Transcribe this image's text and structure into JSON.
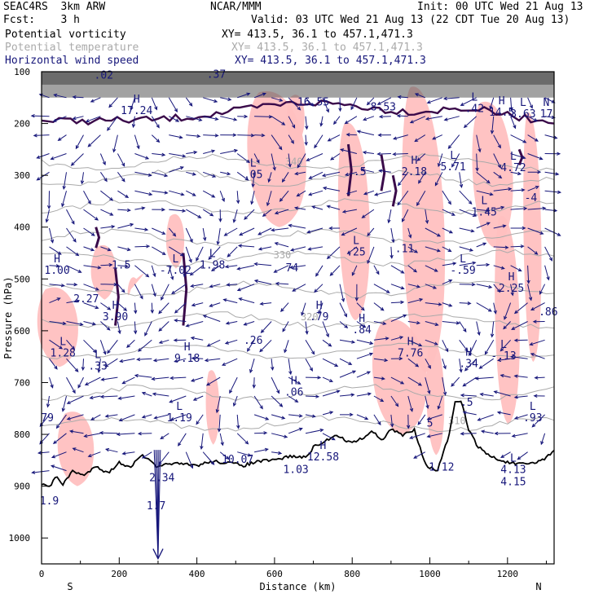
{
  "header": {
    "project": "SEAC4RS",
    "model": "3km ARW",
    "center": "NCAR/MMM",
    "init": "Init: 00 UTC Wed 21 Aug 13",
    "fcst_label": "Fcst:",
    "fcst_value": "3 h",
    "valid": "Valid: 03 UTC Wed 21 Aug 13 (22 CDT Tue 20 Aug 13)",
    "fields": [
      {
        "name": "Potential vorticity",
        "xy": "XY= 413.5, 36.1 to 457.1,471.3",
        "color": "#000000"
      },
      {
        "name": "Potential temperature",
        "xy": "XY= 413.5, 36.1 to 457.1,471.3",
        "color": "#aaaaaa"
      },
      {
        "name": "Horizontal wind speed",
        "xy": "XY= 413.5, 36.1 to 457.1,471.3",
        "color": "#16167a"
      }
    ]
  },
  "colors": {
    "pv_fill": "#ffc0c0",
    "wind_vectors": "#16167a",
    "theta_contours": "#aaaaaa",
    "pv_contour": "#3a0a4a",
    "terrain": "#000000"
  },
  "chart_data": {
    "type": "cross-section",
    "xlabel": "Distance (km)",
    "ylabel": "Pressure (hPa)",
    "xlim": [
      0,
      1320
    ],
    "ylim": [
      1050,
      100
    ],
    "x_ticks": [
      0,
      200,
      400,
      600,
      800,
      1000,
      1200
    ],
    "y_ticks": [
      100,
      200,
      300,
      400,
      500,
      600,
      700,
      800,
      900,
      1000
    ],
    "x_end_labels": {
      "left": "S",
      "right": "N"
    },
    "theta_contour_labels": [
      {
        "label": "340",
        "x": 650,
        "p": 280
      },
      {
        "label": "330",
        "x": 620,
        "p": 460
      },
      {
        "label": "320",
        "x": 690,
        "p": 580
      },
      {
        "label": "310",
        "x": 1070,
        "p": 780
      }
    ],
    "extrema_labels": [
      {
        "letter": "",
        "value": ".02",
        "x": 160,
        "p": 113
      },
      {
        "letter": "",
        "value": ".37",
        "x": 450,
        "p": 112
      },
      {
        "letter": "H",
        "value": "17.24",
        "x": 245,
        "p": 182
      },
      {
        "letter": "",
        "value": "16.55",
        "x": 700,
        "p": 165
      },
      {
        "letter": "",
        "value": "8.53",
        "x": 880,
        "p": 175
      },
      {
        "letter": "L",
        "value": ".42",
        "x": 1115,
        "p": 178
      },
      {
        "letter": "H",
        "value": "14.5",
        "x": 1185,
        "p": 185
      },
      {
        "letter": "L",
        "value": "3.63",
        "x": 1240,
        "p": 188
      },
      {
        "letter": "N",
        "value": "17",
        "x": 1300,
        "p": 188
      },
      {
        "letter": "L",
        "value": ".05",
        "x": 545,
        "p": 305
      },
      {
        "letter": "H",
        "value": "2.18",
        "x": 960,
        "p": 300
      },
      {
        "letter": "L",
        "value": "5.71",
        "x": 1060,
        "p": 290
      },
      {
        "letter": "L",
        "value": "4.72",
        "x": 1215,
        "p": 292
      },
      {
        "letter": "",
        "value": "-4",
        "x": 1260,
        "p": 350
      },
      {
        "letter": "L",
        "value": "1.45",
        "x": 1140,
        "p": 378
      },
      {
        "letter": "",
        "value": ".5",
        "x": 820,
        "p": 300
      },
      {
        "letter": "H",
        "value": "1.00",
        "x": 40,
        "p": 490
      },
      {
        "letter": "",
        "value": "2.27",
        "x": 115,
        "p": 545
      },
      {
        "letter": "",
        "value": "1.5",
        "x": 205,
        "p": 480
      },
      {
        "letter": "H",
        "value": "3.90",
        "x": 190,
        "p": 580
      },
      {
        "letter": "L",
        "value": "-7.02",
        "x": 345,
        "p": 490
      },
      {
        "letter": "L",
        "value": "1.98",
        "x": 440,
        "p": 480
      },
      {
        "letter": "",
        "value": "74",
        "x": 645,
        "p": 485
      },
      {
        "letter": "L",
        "value": ".25",
        "x": 810,
        "p": 455
      },
      {
        "letter": "",
        "value": ".11",
        "x": 935,
        "p": 448
      },
      {
        "letter": "L",
        "value": "-.59",
        "x": 1085,
        "p": 490
      },
      {
        "letter": "H",
        "value": "2.25",
        "x": 1210,
        "p": 525
      },
      {
        "letter": "",
        "value": ".86",
        "x": 1305,
        "p": 570
      },
      {
        "letter": "H",
        "value": ".79",
        "x": 715,
        "p": 580
      },
      {
        "letter": "H",
        "value": ".84",
        "x": 825,
        "p": 605
      },
      {
        "letter": "L",
        "value": "1.28",
        "x": 55,
        "p": 650
      },
      {
        "letter": "L",
        "value": ".33",
        "x": 145,
        "p": 675
      },
      {
        "letter": "H",
        "value": "9.18",
        "x": 375,
        "p": 660
      },
      {
        "letter": "",
        "value": ".26",
        "x": 545,
        "p": 625
      },
      {
        "letter": "H",
        "value": "7.76",
        "x": 950,
        "p": 650
      },
      {
        "letter": "H",
        "value": ".34",
        "x": 1100,
        "p": 670
      },
      {
        "letter": "L",
        "value": "-.13",
        "x": 1190,
        "p": 655
      },
      {
        "letter": "H",
        "value": ".06",
        "x": 650,
        "p": 725
      },
      {
        "letter": "",
        "value": ".5",
        "x": 1095,
        "p": 745
      },
      {
        "letter": "L",
        "value": ".93",
        "x": 1265,
        "p": 775
      },
      {
        "letter": "",
        "value": "79",
        "x": 15,
        "p": 775
      },
      {
        "letter": "L",
        "value": "1.19",
        "x": 355,
        "p": 775
      },
      {
        "letter": "",
        "value": "5",
        "x": 1000,
        "p": 785
      },
      {
        "letter": "H",
        "value": "12.58",
        "x": 725,
        "p": 850
      },
      {
        "letter": "",
        "value": "10.07",
        "x": 505,
        "p": 855
      },
      {
        "letter": "",
        "value": "1.03",
        "x": 655,
        "p": 875
      },
      {
        "letter": "",
        "value": "1.12",
        "x": 1030,
        "p": 870
      },
      {
        "letter": "L",
        "value": "4.13",
        "x": 1215,
        "p": 875
      },
      {
        "letter": "",
        "value": "4.15",
        "x": 1215,
        "p": 898
      },
      {
        "letter": "",
        "value": "2.34",
        "x": 310,
        "p": 890
      },
      {
        "letter": "",
        "value": "1.9",
        "x": 20,
        "p": 935
      },
      {
        "letter": "",
        "value": "1.7",
        "x": 295,
        "p": 945
      }
    ]
  }
}
